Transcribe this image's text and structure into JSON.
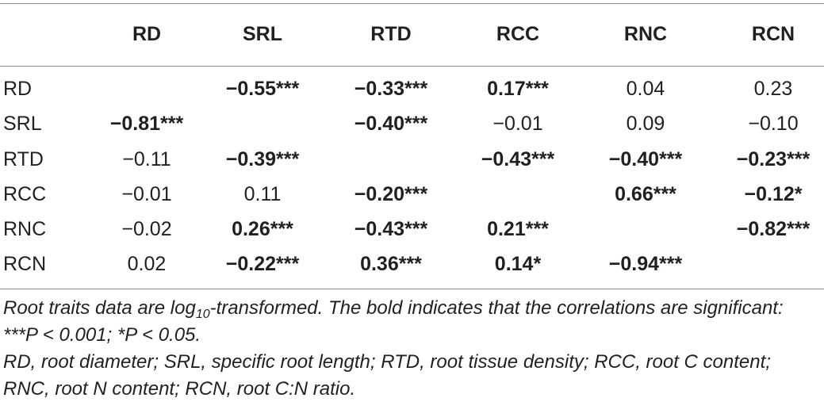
{
  "table": {
    "columns": [
      "RD",
      "SRL",
      "RTD",
      "RCC",
      "RNC",
      "RCN"
    ],
    "rows": [
      {
        "label": "RD",
        "cells": [
          {
            "text": "",
            "bold": false
          },
          {
            "text": "−0.55***",
            "bold": true
          },
          {
            "text": "−0.33***",
            "bold": true
          },
          {
            "text": "0.17***",
            "bold": true
          },
          {
            "text": "0.04",
            "bold": false
          },
          {
            "text": "0.23",
            "bold": false
          }
        ]
      },
      {
        "label": "SRL",
        "cells": [
          {
            "text": "−0.81***",
            "bold": true
          },
          {
            "text": "",
            "bold": false
          },
          {
            "text": "−0.40***",
            "bold": true
          },
          {
            "text": "−0.01",
            "bold": false
          },
          {
            "text": "0.09",
            "bold": false
          },
          {
            "text": "−0.10",
            "bold": false
          }
        ]
      },
      {
        "label": "RTD",
        "cells": [
          {
            "text": "−0.11",
            "bold": false
          },
          {
            "text": "−0.39***",
            "bold": true
          },
          {
            "text": "",
            "bold": false
          },
          {
            "text": "−0.43***",
            "bold": true
          },
          {
            "text": "−0.40***",
            "bold": true
          },
          {
            "text": "−0.23***",
            "bold": true
          }
        ]
      },
      {
        "label": "RCC",
        "cells": [
          {
            "text": "−0.01",
            "bold": false
          },
          {
            "text": "0.11",
            "bold": false
          },
          {
            "text": "−0.20***",
            "bold": true
          },
          {
            "text": "",
            "bold": false
          },
          {
            "text": "0.66***",
            "bold": true
          },
          {
            "text": "−0.12*",
            "bold": true
          }
        ]
      },
      {
        "label": "RNC",
        "cells": [
          {
            "text": "−0.02",
            "bold": false
          },
          {
            "text": "0.26***",
            "bold": true
          },
          {
            "text": "−0.43***",
            "bold": true
          },
          {
            "text": "0.21***",
            "bold": true
          },
          {
            "text": "",
            "bold": false
          },
          {
            "text": "−0.82***",
            "bold": true
          }
        ]
      },
      {
        "label": "RCN",
        "cells": [
          {
            "text": "0.02",
            "bold": false
          },
          {
            "text": "−0.22***",
            "bold": true
          },
          {
            "text": "0.36***",
            "bold": true
          },
          {
            "text": "0.14*",
            "bold": true
          },
          {
            "text": "−0.94***",
            "bold": true
          },
          {
            "text": "",
            "bold": false
          }
        ]
      }
    ]
  },
  "notes": {
    "line1_part1": "Root traits data are log",
    "line1_sub": "10",
    "line1_part2": "-transformed. The bold indicates that the correlations are significant: ***P < 0.001; *P < 0.05.",
    "line2": "RD, root diameter; SRL, specific root length; RTD, root tissue density; RCC, root C content; RNC, root N content; RCN, root C:N ratio."
  }
}
